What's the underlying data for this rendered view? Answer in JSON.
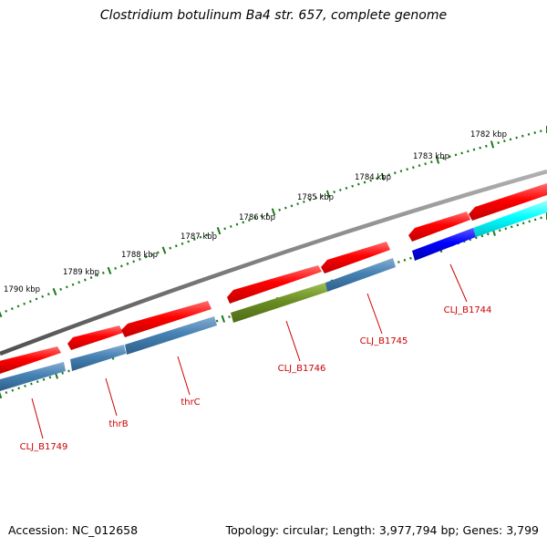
{
  "title": "Clostridium botulinum Ba4 str. 657, complete genome",
  "footer": {
    "accession": "Accession: NC_012658",
    "summary": "Topology: circular; Length: 3,977,794 bp; Genes: 3,799"
  },
  "colors": {
    "backbone": "#808080",
    "tick": "#1a7a1a",
    "gene_red": "#ff0000",
    "gene_steelblue": "#4682b4",
    "gene_olive": "#6b8e23",
    "gene_blue": "#0000ff",
    "gene_cyan": "#00ffff",
    "label": "#cc0000"
  },
  "scale_labels": [
    {
      "text": "1782 kbp",
      "kbp": 1782
    },
    {
      "text": "1783 kbp",
      "kbp": 1783
    },
    {
      "text": "1784 kbp",
      "kbp": 1784
    },
    {
      "text": "1785 kbp",
      "kbp": 1785
    },
    {
      "text": "1786 kbp",
      "kbp": 1786
    },
    {
      "text": "1787 kbp",
      "kbp": 1787
    },
    {
      "text": "1788 kbp",
      "kbp": 1788
    },
    {
      "text": "1789 kbp",
      "kbp": 1789
    },
    {
      "text": "1790 kbp",
      "kbp": 1790
    }
  ],
  "genes": [
    {
      "label": "CLJ_B1744",
      "strand": "-",
      "color": "blue"
    },
    {
      "label": "CLJ_B1745",
      "strand": "-",
      "color": "steelblue"
    },
    {
      "label": "CLJ_B1746",
      "strand": "-",
      "color": "olive"
    },
    {
      "label": "thrC",
      "strand": "-",
      "color": "steelblue"
    },
    {
      "label": "thrB",
      "strand": "-",
      "color": "steelblue"
    },
    {
      "label": "CLJ_B1749",
      "strand": "-",
      "color": "steelblue"
    }
  ]
}
